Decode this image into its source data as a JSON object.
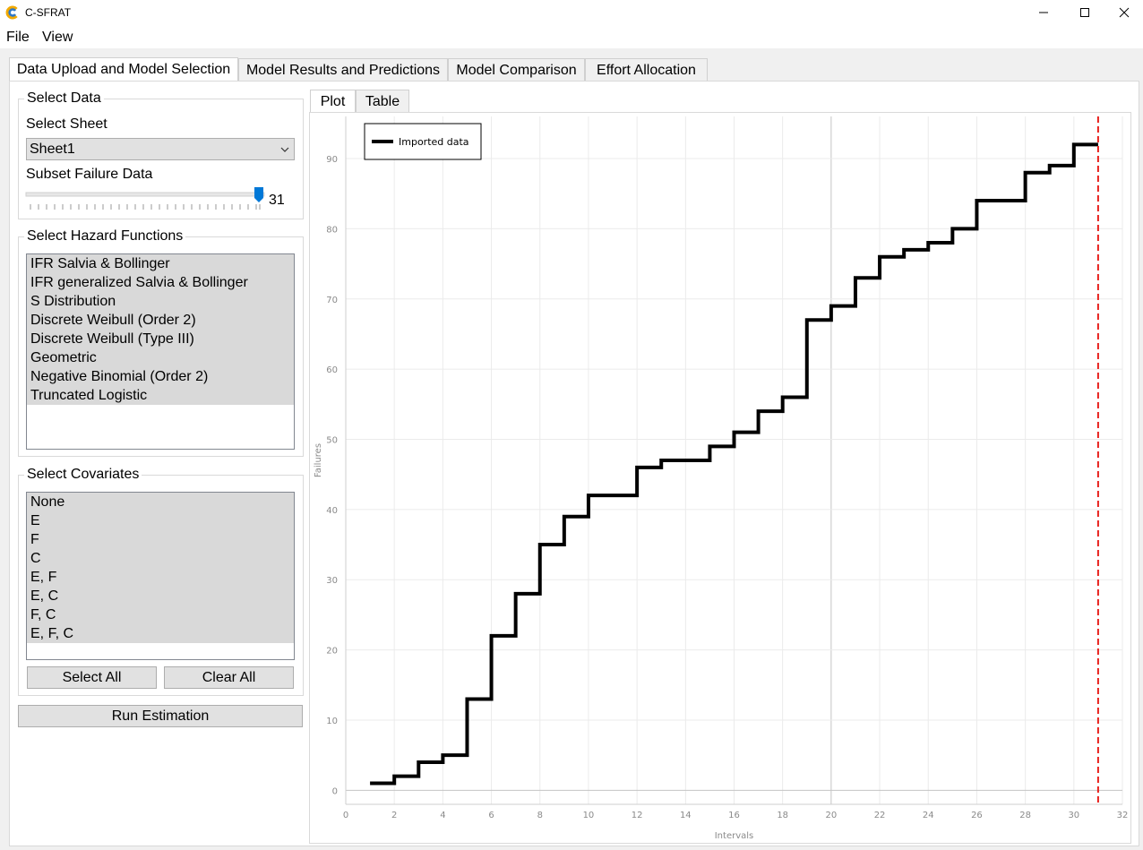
{
  "window": {
    "title": "C-SFRAT"
  },
  "menu": {
    "file": "File",
    "view": "View"
  },
  "tabs": [
    "Data Upload and Model Selection",
    "Model Results and Predictions",
    "Model Comparison",
    "Effort Allocation"
  ],
  "select_data": {
    "title": "Select Data",
    "sheet_label": "Select Sheet",
    "sheet_value": "Sheet1",
    "subset_label": "Subset Failure Data",
    "subset_value": "31"
  },
  "hazard": {
    "title": "Select Hazard Functions",
    "items": [
      "IFR Salvia & Bollinger",
      "IFR generalized Salvia & Bollinger",
      "S Distribution",
      "Discrete Weibull (Order 2)",
      "Discrete Weibull (Type III)",
      "Geometric",
      "Negative Binomial (Order 2)",
      "Truncated Logistic"
    ]
  },
  "covariates": {
    "title": "Select Covariates",
    "items": [
      "None",
      "E",
      "F",
      "C",
      "E, F",
      "E, C",
      "F, C",
      "E, F, C"
    ],
    "select_all": "Select All",
    "clear_all": "Clear All"
  },
  "run_button": "Run Estimation",
  "plot_tabs": [
    "Plot",
    "Table"
  ],
  "chart_data": {
    "type": "line",
    "step": true,
    "series": [
      {
        "name": "Imported data",
        "x": [
          1,
          2,
          3,
          4,
          5,
          6,
          7,
          8,
          9,
          10,
          11,
          12,
          13,
          14,
          15,
          16,
          17,
          18,
          19,
          20,
          21,
          22,
          23,
          24,
          25,
          26,
          27,
          28,
          29,
          30,
          31
        ],
        "values": [
          1,
          2,
          4,
          5,
          13,
          22,
          28,
          35,
          39,
          42,
          42,
          46,
          47,
          47,
          49,
          51,
          54,
          56,
          67,
          69,
          73,
          76,
          77,
          78,
          80,
          84,
          84,
          88,
          89,
          92,
          92
        ]
      }
    ],
    "xlabel": "Intervals",
    "ylabel": "Failures",
    "xlim": [
      0,
      32
    ],
    "ylim": [
      -2,
      96
    ],
    "xticks": [
      0,
      2,
      4,
      6,
      8,
      10,
      12,
      14,
      16,
      18,
      20,
      22,
      24,
      26,
      28,
      30,
      32
    ],
    "yticks": [
      0,
      10,
      20,
      30,
      40,
      50,
      60,
      70,
      80,
      90
    ],
    "vline_x": 31,
    "vline_color": "#e8201c",
    "grid": true,
    "legend": "top-left"
  }
}
